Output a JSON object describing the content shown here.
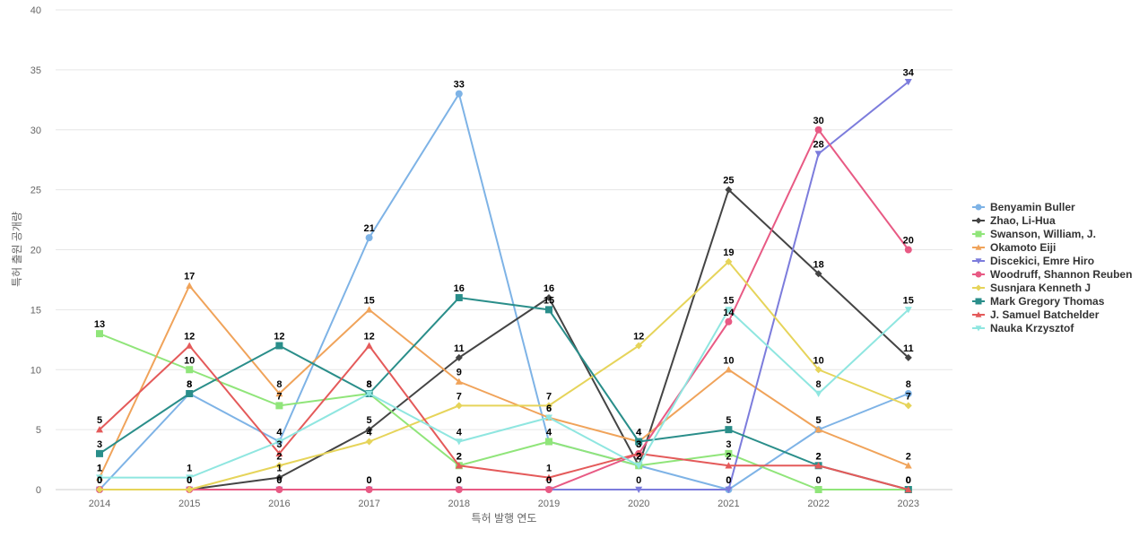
{
  "chart_data": {
    "type": "line",
    "title": "",
    "xlabel": "특허 발행 연도",
    "ylabel": "특허 출원 공개량",
    "ylim": [
      0,
      40
    ],
    "yticks": [
      0,
      5,
      10,
      15,
      20,
      25,
      30,
      35,
      40
    ],
    "grid": true,
    "legend_position": "right",
    "categories": [
      "2014",
      "2015",
      "2016",
      "2017",
      "2018",
      "2019",
      "2020",
      "2021",
      "2022",
      "2023"
    ],
    "series": [
      {
        "name": "Benyamin Buller",
        "color": "#7eb3e6",
        "marker": "circle",
        "values": [
          0,
          8,
          4,
          21,
          33,
          4,
          2,
          0,
          5,
          8
        ]
      },
      {
        "name": "Zhao, Li-Hua",
        "color": "#444444",
        "marker": "diamond",
        "values": [
          0,
          0,
          1,
          5,
          11,
          16,
          2,
          25,
          18,
          11
        ]
      },
      {
        "name": "Swanson, William, J.",
        "color": "#90e57a",
        "marker": "square",
        "values": [
          13,
          10,
          7,
          8,
          2,
          4,
          2,
          3,
          0,
          0
        ]
      },
      {
        "name": "Okamoto Eiji",
        "color": "#f0a35a",
        "marker": "triangle",
        "values": [
          1,
          17,
          8,
          15,
          9,
          6,
          4,
          10,
          5,
          2
        ]
      },
      {
        "name": "Discekici, Emre Hiro",
        "color": "#7c7cdc",
        "marker": "triangle-down",
        "values": [
          0,
          0,
          0,
          0,
          0,
          0,
          0,
          0,
          28,
          34
        ]
      },
      {
        "name": "Woodruff, Shannon Reuben",
        "color": "#e85a84",
        "marker": "circle",
        "values": [
          0,
          0,
          0,
          0,
          0,
          0,
          3,
          14,
          30,
          20
        ]
      },
      {
        "name": "Susnjara Kenneth J",
        "color": "#e6d45a",
        "marker": "diamond",
        "values": [
          0,
          0,
          2,
          4,
          7,
          7,
          12,
          19,
          10,
          7
        ]
      },
      {
        "name": "Mark Gregory Thomas",
        "color": "#2a8e8a",
        "marker": "square",
        "values": [
          3,
          8,
          12,
          8,
          16,
          15,
          4,
          5,
          2,
          0
        ]
      },
      {
        "name": "J. Samuel Batchelder",
        "color": "#e45a5a",
        "marker": "triangle",
        "values": [
          5,
          12,
          3,
          12,
          2,
          1,
          3,
          2,
          2,
          0
        ]
      },
      {
        "name": "Nauka Krzysztof",
        "color": "#8fe6e0",
        "marker": "triangle-down",
        "values": [
          1,
          1,
          4,
          8,
          4,
          6,
          2,
          15,
          8,
          15
        ]
      }
    ]
  }
}
